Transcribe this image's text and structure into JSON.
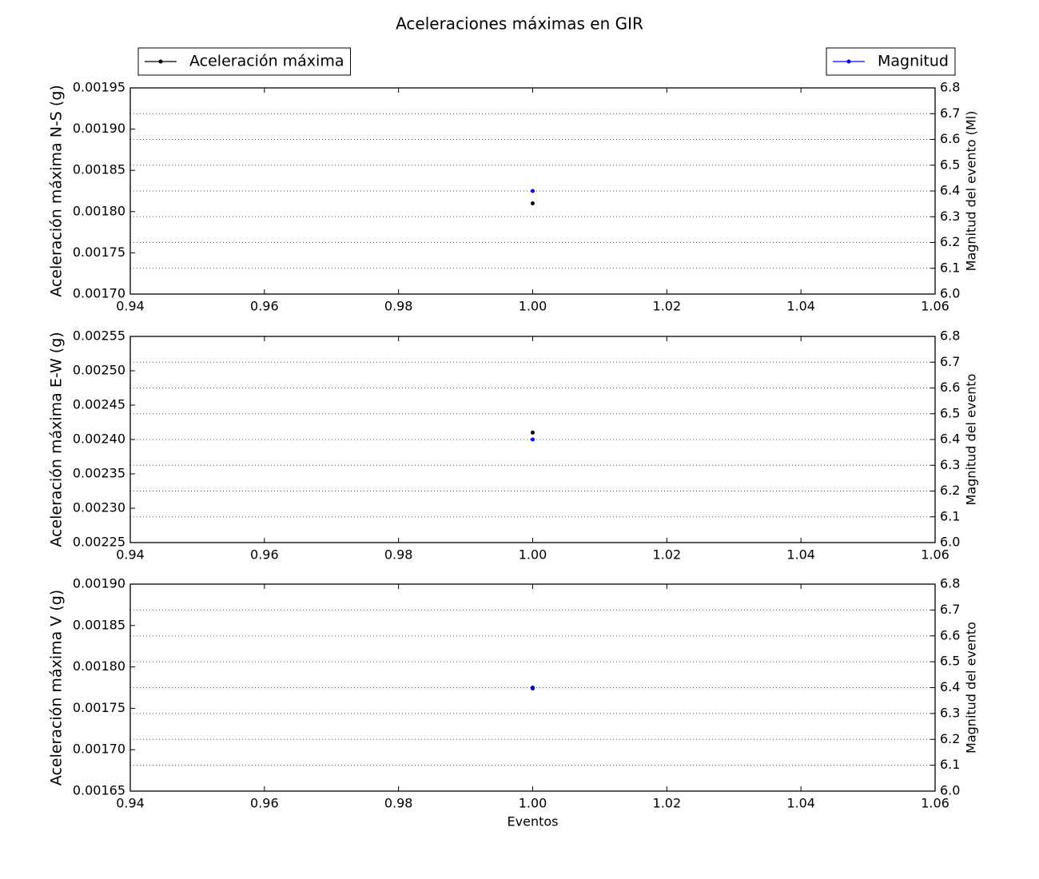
{
  "title": "Aceleraciones máximas en GIR",
  "chart_data": [
    {
      "type": "line",
      "ylabel": "Aceleración máxima N-S (g)",
      "y2label": "Magnitud del evento (Ml)",
      "x": [
        1.0
      ],
      "xlim": [
        0.94,
        1.06
      ],
      "xticks": [
        0.94,
        0.96,
        0.98,
        {
          "value": 1.0,
          "label": "1.00"
        },
        1.02,
        1.04,
        1.06
      ],
      "ylim": [
        0.0017,
        0.00195
      ],
      "yticks": [
        {
          "value": 0.0017,
          "label": "0.00170"
        },
        0.00175,
        {
          "value": 0.0018,
          "label": "0.00180"
        },
        0.00185,
        {
          "value": 0.0019,
          "label": "0.00190"
        },
        0.00195
      ],
      "y2lim": [
        6.0,
        6.8
      ],
      "y2ticks": [
        {
          "value": 6.0,
          "label": "6.0"
        },
        6.1,
        6.2,
        6.3,
        6.4,
        6.5,
        6.6,
        6.7,
        6.8
      ],
      "grid": "y2",
      "series": [
        {
          "name": "Aceleración máxima",
          "color": "#000000",
          "values": [
            0.00181
          ]
        },
        {
          "name": "Magnitud",
          "color": "#0000ff",
          "values": [
            6.4
          ],
          "axis": "y2"
        }
      ]
    },
    {
      "type": "line",
      "ylabel": "Aceleración máxima E-W (g)",
      "y2label": "Magnitud del evento",
      "x": [
        1.0
      ],
      "xlim": [
        0.94,
        1.06
      ],
      "xticks": [
        0.94,
        0.96,
        0.98,
        {
          "value": 1.0,
          "label": "1.00"
        },
        1.02,
        1.04,
        1.06
      ],
      "ylim": [
        0.00225,
        0.00255
      ],
      "yticks": [
        0.00225,
        {
          "value": 0.0023,
          "label": "0.00230"
        },
        0.00235,
        {
          "value": 0.0024,
          "label": "0.00240"
        },
        0.00245,
        {
          "value": 0.0025,
          "label": "0.00250"
        },
        0.00255
      ],
      "y2lim": [
        6.0,
        6.8
      ],
      "y2ticks": [
        {
          "value": 6.0,
          "label": "6.0"
        },
        6.1,
        6.2,
        6.3,
        6.4,
        6.5,
        6.6,
        6.7,
        6.8
      ],
      "grid": "y2",
      "series": [
        {
          "color": "#000000",
          "values": [
            0.00241
          ]
        },
        {
          "color": "#0000ff",
          "values": [
            6.4
          ],
          "axis": "y2"
        }
      ]
    },
    {
      "type": "line",
      "ylabel": "Aceleración máxima V (g)",
      "y2label": "Magnitud del evento",
      "xlabel": "Eventos",
      "x": [
        1.0
      ],
      "xlim": [
        0.94,
        1.06
      ],
      "xticks": [
        0.94,
        0.96,
        0.98,
        {
          "value": 1.0,
          "label": "1.00"
        },
        1.02,
        1.04,
        1.06
      ],
      "ylim": [
        0.00165,
        0.0019
      ],
      "yticks": [
        0.00165,
        {
          "value": 0.0017,
          "label": "0.00170"
        },
        0.00175,
        {
          "value": 0.0018,
          "label": "0.00180"
        },
        0.00185,
        {
          "value": 0.0019,
          "label": "0.00190"
        }
      ],
      "y2lim": [
        6.0,
        6.8
      ],
      "y2ticks": [
        {
          "value": 6.0,
          "label": "6.0"
        },
        6.1,
        6.2,
        6.3,
        6.4,
        6.5,
        6.6,
        6.7,
        6.8
      ],
      "grid": "y2",
      "series": [
        {
          "color": "#000000",
          "values": [
            0.001774
          ]
        },
        {
          "color": "#0000ff",
          "values": [
            6.4
          ],
          "axis": "y2"
        }
      ]
    }
  ]
}
